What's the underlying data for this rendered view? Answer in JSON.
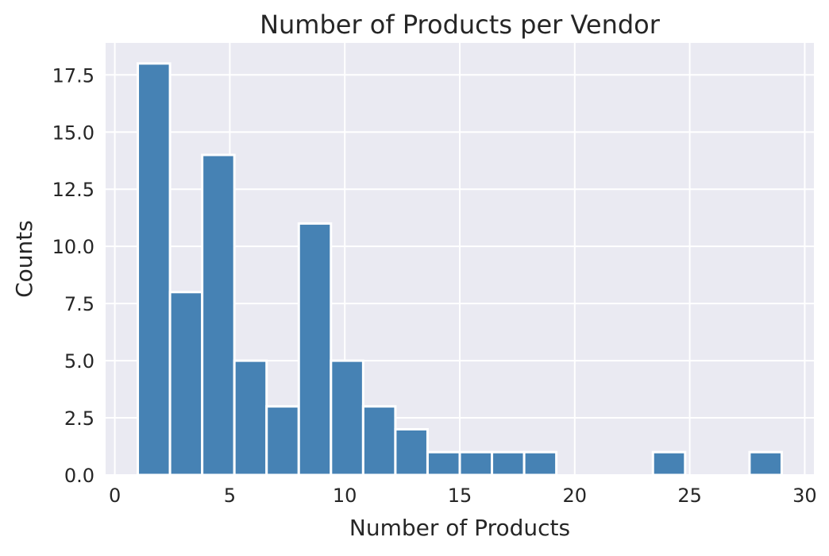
{
  "chart_data": {
    "type": "bar",
    "title": "Number of Products per Vendor",
    "xlabel": "Number of Products",
    "ylabel": "Counts",
    "xlim": [
      -0.4,
      30.4
    ],
    "ylim": [
      0,
      18.9
    ],
    "x_ticks": [
      0,
      5,
      10,
      15,
      20,
      25,
      30
    ],
    "x_tick_labels": [
      "0",
      "5",
      "10",
      "15",
      "20",
      "25",
      "30"
    ],
    "y_ticks": [
      0,
      2.5,
      5,
      7.5,
      10,
      12.5,
      15,
      17.5
    ],
    "y_tick_labels": [
      "0.0",
      "2.5",
      "5.0",
      "7.5",
      "10.0",
      "12.5",
      "15.0",
      "17.5"
    ],
    "grid": true,
    "bins": [
      {
        "x0": 1.0,
        "x1": 2.4,
        "count": 18
      },
      {
        "x0": 2.4,
        "x1": 3.8,
        "count": 8
      },
      {
        "x0": 3.8,
        "x1": 5.2,
        "count": 14
      },
      {
        "x0": 5.2,
        "x1": 6.6,
        "count": 5
      },
      {
        "x0": 6.6,
        "x1": 8.0,
        "count": 3
      },
      {
        "x0": 8.0,
        "x1": 9.4,
        "count": 11
      },
      {
        "x0": 9.4,
        "x1": 10.8,
        "count": 5
      },
      {
        "x0": 10.8,
        "x1": 12.2,
        "count": 3
      },
      {
        "x0": 12.2,
        "x1": 13.6,
        "count": 2
      },
      {
        "x0": 13.6,
        "x1": 15.0,
        "count": 1
      },
      {
        "x0": 15.0,
        "x1": 16.4,
        "count": 1
      },
      {
        "x0": 16.4,
        "x1": 17.8,
        "count": 1
      },
      {
        "x0": 17.8,
        "x1": 19.2,
        "count": 1
      },
      {
        "x0": 19.2,
        "x1": 20.6,
        "count": 0
      },
      {
        "x0": 20.6,
        "x1": 22.0,
        "count": 0
      },
      {
        "x0": 22.0,
        "x1": 23.4,
        "count": 0
      },
      {
        "x0": 23.4,
        "x1": 24.8,
        "count": 1
      },
      {
        "x0": 24.8,
        "x1": 26.2,
        "count": 0
      },
      {
        "x0": 26.2,
        "x1": 27.6,
        "count": 0
      },
      {
        "x0": 27.6,
        "x1": 29.0,
        "count": 1
      }
    ],
    "colors": {
      "bar": "#4682b4",
      "plot_background": "#eaeaf2",
      "grid": "#ffffff",
      "bar_edge": "#ffffff"
    }
  }
}
